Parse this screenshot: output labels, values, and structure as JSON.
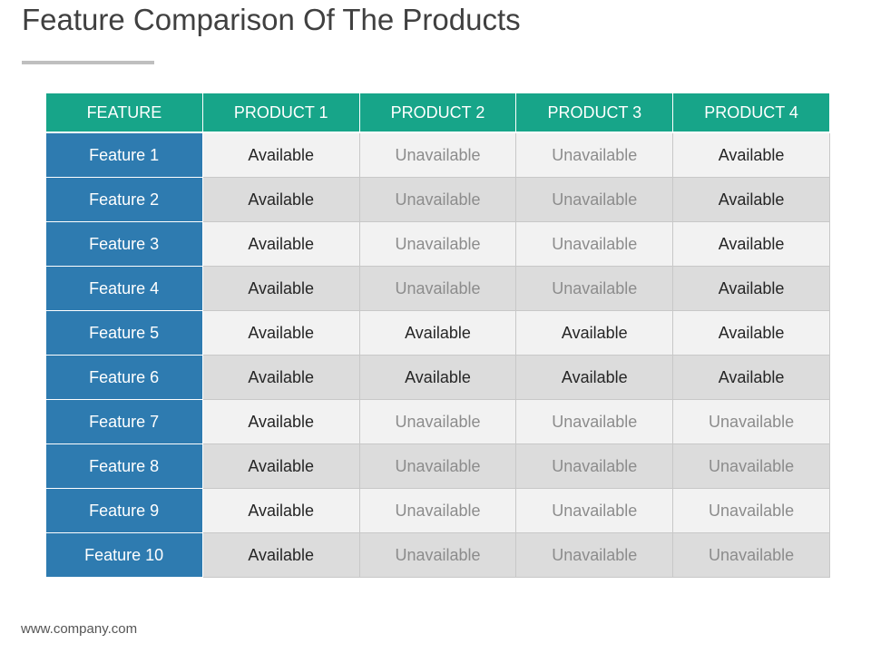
{
  "page": {
    "title": "Feature Comparison Of The Products",
    "footer": "www.company.com"
  },
  "table": {
    "headers": [
      "FEATURE",
      "PRODUCT 1",
      "PRODUCT 2",
      "PRODUCT 3",
      "PRODUCT 4"
    ],
    "rows": [
      {
        "feature": "Feature 1",
        "values": [
          "Available",
          "Unavailable",
          "Unavailable",
          "Available"
        ]
      },
      {
        "feature": "Feature 2",
        "values": [
          "Available",
          "Unavailable",
          "Unavailable",
          "Available"
        ]
      },
      {
        "feature": "Feature 3",
        "values": [
          "Available",
          "Unavailable",
          "Unavailable",
          "Available"
        ]
      },
      {
        "feature": "Feature 4",
        "values": [
          "Available",
          "Unavailable",
          "Unavailable",
          "Available"
        ]
      },
      {
        "feature": "Feature 5",
        "values": [
          "Available",
          "Available",
          "Available",
          "Available"
        ]
      },
      {
        "feature": "Feature 6",
        "values": [
          "Available",
          "Available",
          "Available",
          "Available"
        ]
      },
      {
        "feature": "Feature 7",
        "values": [
          "Available",
          "Unavailable",
          "Unavailable",
          "Unavailable"
        ]
      },
      {
        "feature": "Feature 8",
        "values": [
          "Available",
          "Unavailable",
          "Unavailable",
          "Unavailable"
        ]
      },
      {
        "feature": "Feature 9",
        "values": [
          "Available",
          "Unavailable",
          "Unavailable",
          "Unavailable"
        ]
      },
      {
        "feature": "Feature 10",
        "values": [
          "Available",
          "Unavailable",
          "Unavailable",
          "Unavailable"
        ]
      }
    ]
  },
  "colors": {
    "header_bg": "#17a589",
    "feature_bg": "#2e7bb0",
    "row_light": "#f2f2f2",
    "row_dark": "#dcdcdc"
  }
}
